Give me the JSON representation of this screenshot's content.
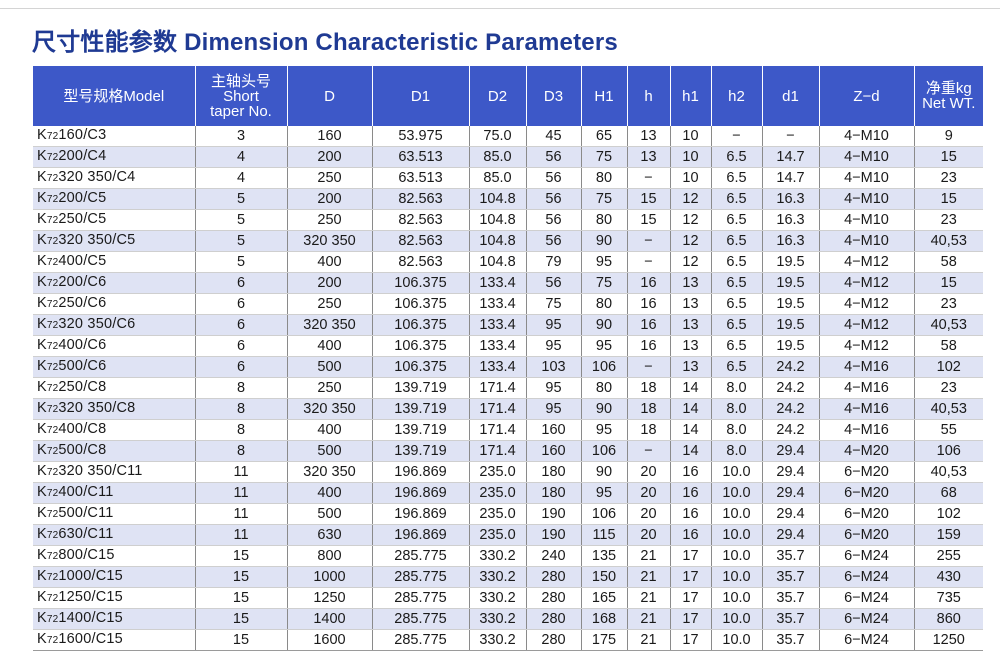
{
  "title": "尺寸性能参数 Dimension Characteristic Parameters",
  "headers": {
    "model": "型号规格Model",
    "taper": [
      "主轴头号",
      "Short",
      "taper No."
    ],
    "D": "D",
    "D1": "D1",
    "D2": "D2",
    "D3": "D3",
    "H1": "H1",
    "h": "h",
    "h1": "h1",
    "h2": "h2",
    "d1": "d1",
    "Zd": "Z−d",
    "weight": [
      "净重kg",
      "Net WT."
    ]
  },
  "rows": [
    [
      "K72160/C3",
      "3",
      "160",
      "53.975",
      "75.0",
      "45",
      "65",
      "13",
      "10",
      "−",
      "−",
      "4−M10",
      "9"
    ],
    [
      "K72200/C4",
      "4",
      "200",
      "63.513",
      "85.0",
      "56",
      "75",
      "13",
      "10",
      "6.5",
      "14.7",
      "4−M10",
      "15"
    ],
    [
      "K72320 350/C4",
      "4",
      "250",
      "63.513",
      "85.0",
      "56",
      "80",
      "−",
      "10",
      "6.5",
      "14.7",
      "4−M10",
      "23"
    ],
    [
      "K72200/C5",
      "5",
      "200",
      "82.563",
      "104.8",
      "56",
      "75",
      "15",
      "12",
      "6.5",
      "16.3",
      "4−M10",
      "15"
    ],
    [
      "K72250/C5",
      "5",
      "250",
      "82.563",
      "104.8",
      "56",
      "80",
      "15",
      "12",
      "6.5",
      "16.3",
      "4−M10",
      "23"
    ],
    [
      "K72320 350/C5",
      "5",
      "320 350",
      "82.563",
      "104.8",
      "56",
      "90",
      "−",
      "12",
      "6.5",
      "16.3",
      "4−M10",
      "40,53"
    ],
    [
      "K72400/C5",
      "5",
      "400",
      "82.563",
      "104.8",
      "79",
      "95",
      "−",
      "12",
      "6.5",
      "19.5",
      "4−M12",
      "58"
    ],
    [
      "K72200/C6",
      "6",
      "200",
      "106.375",
      "133.4",
      "56",
      "75",
      "16",
      "13",
      "6.5",
      "19.5",
      "4−M12",
      "15"
    ],
    [
      "K72250/C6",
      "6",
      "250",
      "106.375",
      "133.4",
      "75",
      "80",
      "16",
      "13",
      "6.5",
      "19.5",
      "4−M12",
      "23"
    ],
    [
      "K72320 350/C6",
      "6",
      "320 350",
      "106.375",
      "133.4",
      "95",
      "90",
      "16",
      "13",
      "6.5",
      "19.5",
      "4−M12",
      "40,53"
    ],
    [
      "K72400/C6",
      "6",
      "400",
      "106.375",
      "133.4",
      "95",
      "95",
      "16",
      "13",
      "6.5",
      "19.5",
      "4−M12",
      "58"
    ],
    [
      "K72500/C6",
      "6",
      "500",
      "106.375",
      "133.4",
      "103",
      "106",
      "−",
      "13",
      "6.5",
      "24.2",
      "4−M16",
      "102"
    ],
    [
      "K72250/C8",
      "8",
      "250",
      "139.719",
      "171.4",
      "95",
      "80",
      "18",
      "14",
      "8.0",
      "24.2",
      "4−M16",
      "23"
    ],
    [
      "K72320 350/C8",
      "8",
      "320 350",
      "139.719",
      "171.4",
      "95",
      "90",
      "18",
      "14",
      "8.0",
      "24.2",
      "4−M16",
      "40,53"
    ],
    [
      "K72400/C8",
      "8",
      "400",
      "139.719",
      "171.4",
      "160",
      "95",
      "18",
      "14",
      "8.0",
      "24.2",
      "4−M16",
      "55"
    ],
    [
      "K72500/C8",
      "8",
      "500",
      "139.719",
      "171.4",
      "160",
      "106",
      "−",
      "14",
      "8.0",
      "29.4",
      "4−M20",
      "106"
    ],
    [
      "K72320 350/C11",
      "11",
      "320 350",
      "196.869",
      "235.0",
      "180",
      "90",
      "20",
      "16",
      "10.0",
      "29.4",
      "6−M20",
      "40,53"
    ],
    [
      "K72400/C11",
      "11",
      "400",
      "196.869",
      "235.0",
      "180",
      "95",
      "20",
      "16",
      "10.0",
      "29.4",
      "6−M20",
      "68"
    ],
    [
      "K72500/C11",
      "11",
      "500",
      "196.869",
      "235.0",
      "190",
      "106",
      "20",
      "16",
      "10.0",
      "29.4",
      "6−M20",
      "102"
    ],
    [
      "K72630/C11",
      "11",
      "630",
      "196.869",
      "235.0",
      "190",
      "115",
      "20",
      "16",
      "10.0",
      "29.4",
      "6−M20",
      "159"
    ],
    [
      "K72800/C15",
      "15",
      "800",
      "285.775",
      "330.2",
      "240",
      "135",
      "21",
      "17",
      "10.0",
      "35.7",
      "6−M24",
      "255"
    ],
    [
      "K721000/C15",
      "15",
      "1000",
      "285.775",
      "330.2",
      "280",
      "150",
      "21",
      "17",
      "10.0",
      "35.7",
      "6−M24",
      "430"
    ],
    [
      "K721250/C15",
      "15",
      "1250",
      "285.775",
      "330.2",
      "280",
      "165",
      "21",
      "17",
      "10.0",
      "35.7",
      "6−M24",
      "735"
    ],
    [
      "K721400/C15",
      "15",
      "1400",
      "285.775",
      "330.2",
      "280",
      "168",
      "21",
      "17",
      "10.0",
      "35.7",
      "6−M24",
      "860"
    ],
    [
      "K721600/C15",
      "15",
      "1600",
      "285.775",
      "330.2",
      "280",
      "175",
      "21",
      "17",
      "10.0",
      "35.7",
      "6−M24",
      "1250"
    ]
  ]
}
